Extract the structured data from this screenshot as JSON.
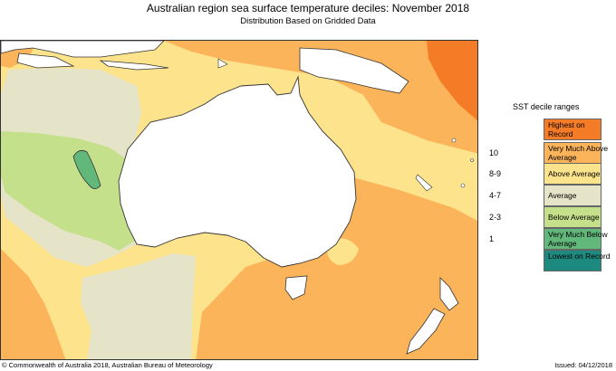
{
  "title": "Australian region sea surface temperature deciles:  November 2018",
  "subtitle": "Distribution Based on Gridded Data",
  "legend": {
    "title": "SST decile ranges",
    "items": [
      {
        "range": "",
        "label": "Highest on Record",
        "color": "#f57c26"
      },
      {
        "range": "10",
        "label": "Very Much Above Average",
        "color": "#fbb45a"
      },
      {
        "range": "8-9",
        "label": "Above Average",
        "color": "#fde48c"
      },
      {
        "range": "4-7",
        "label": "Average",
        "color": "#e6e4c8"
      },
      {
        "range": "2-3",
        "label": "Below Average",
        "color": "#c4e08a"
      },
      {
        "range": "1",
        "label": "Very Much Below Average",
        "color": "#62b87a"
      },
      {
        "range": "",
        "label": "Lowest on Record",
        "color": "#1d8a80"
      }
    ]
  },
  "footer": {
    "copyright": "© Commonwealth of Australia 2018, Australian Bureau of Meteorology",
    "issued": "Issued: 04/12/2018"
  }
}
